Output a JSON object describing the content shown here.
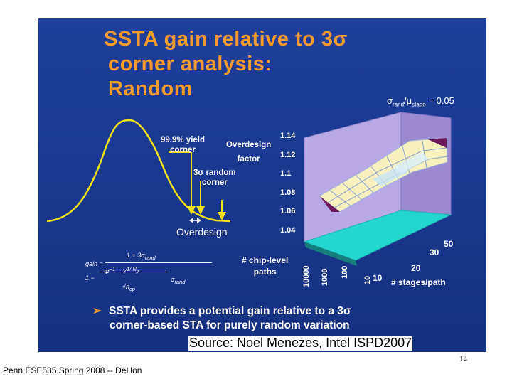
{
  "slide": {
    "title": {
      "line1": "SSTA gain relative to 3σ",
      "line2": "corner analysis:",
      "line3": "Random"
    },
    "bell_curve": {
      "yield_label_1": "99.9% yield",
      "yield_label_2": "corner",
      "random_label_1": "3σ random",
      "random_label_2": "corner",
      "overdesign_label": "Overdesign"
    },
    "formula": {
      "lhs": "gain =",
      "num": "1 + 3σ",
      "num_sub": "rand",
      "den_term": "1 −",
      "den_sigma": "σ",
      "den_sigma_sub": "rand",
      "phi": "Φ",
      "phi_sup": "−1",
      "y": "Y",
      "exp": "1/ N",
      "exp_sub": "p",
      "sqrt": "√",
      "ncp": "n",
      "ncp_sub": "cp"
    },
    "surface_plot": {
      "sigma_ratio_prefix": "σ",
      "sigma_ratio_sub1": "rand",
      "sigma_ratio_mid": "/μ",
      "sigma_ratio_sub2": "stage",
      "sigma_ratio_value": "= 0.05",
      "z_axis_title_1": "Overdesign",
      "z_axis_title_2": "factor",
      "z_ticks": [
        "1.14",
        "1.12",
        "1.1",
        "1.08",
        "1.06",
        "1.04"
      ],
      "paths_axis_title_1": "# chip-level",
      "paths_axis_title_2": "paths",
      "paths_ticks": [
        "10000",
        "1000",
        "100",
        "10"
      ],
      "stages_axis_title": "# stages/path",
      "stages_ticks": [
        "50",
        "30",
        "20",
        "10"
      ]
    },
    "bullet": {
      "arrow": "➢",
      "line1": "SSTA provides a potential gain relative to a 3σ",
      "line2": "corner-based STA for purely random variation"
    }
  },
  "source": "Source: Noel Menezes, Intel ISPD2007",
  "page_number": "14",
  "footer": "Penn ESE535 Spring 2008 -- DeHon",
  "colors": {
    "slide_bg": "#1a3890",
    "title": "#f59a2c",
    "curve": "#f2e21a",
    "wall": "#b8a8e6",
    "floor": "#24d6d0",
    "surface": "#f7f1c0",
    "surface_dark": "#6a1a5a"
  }
}
